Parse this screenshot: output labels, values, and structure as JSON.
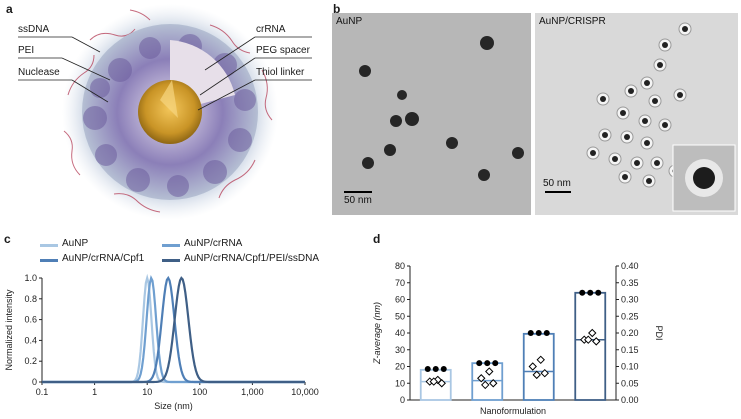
{
  "panels": {
    "a": {
      "letter": "a",
      "labels_left": [
        "ssDNA",
        "PEI",
        "Nuclease"
      ],
      "labels_right": [
        "crRNA",
        "PEG spacer",
        "Thiol linker"
      ]
    },
    "b": {
      "letter": "b",
      "left_label": "AuNP",
      "right_label": "AuNP/CRISPR",
      "left_scalebar": "50 nm",
      "right_scalebar": "50 nm"
    },
    "c": {
      "letter": "c",
      "chart_data": {
        "type": "line",
        "xlabel": "Size (nm)",
        "ylabel": "Normalized intensity",
        "xscale": "log",
        "xlim": [
          0.1,
          10000
        ],
        "ylim": [
          0,
          1.0
        ],
        "x_ticks": [
          "0.1",
          "1",
          "10",
          "100",
          "1,000",
          "10,000"
        ],
        "y_ticks": [
          "0",
          "0.2",
          "0.4",
          "0.6",
          "0.8",
          "1.0"
        ],
        "legend_placement": "top",
        "series": [
          {
            "name": "AuNP",
            "color": "#a9c7e3",
            "peak": 10,
            "width": 0.08
          },
          {
            "name": "AuNP/crRNA",
            "color": "#6f9fd0",
            "peak": 12,
            "width": 0.09
          },
          {
            "name": "AuNP/crRNA/Cpf1",
            "color": "#4f7fb6",
            "peak": 25,
            "width": 0.12
          },
          {
            "name": "AuNP/crRNA/Cpf1/PEI/ssDNA",
            "color": "#3f5f86",
            "peak": 45,
            "width": 0.13
          }
        ]
      }
    },
    "d": {
      "letter": "d",
      "chart_data": {
        "type": "bar",
        "xlabel": "Nanoformulation",
        "ylabel": "Z-average (nm)",
        "y2label": "PDI",
        "ylim": [
          0,
          80
        ],
        "y2lim": [
          0,
          0.4
        ],
        "y_ticks": [
          "0",
          "10",
          "20",
          "30",
          "40",
          "50",
          "60",
          "70",
          "80"
        ],
        "y2_ticks": [
          "0.00",
          "0.05",
          "0.10",
          "0.15",
          "0.20",
          "0.25",
          "0.30",
          "0.35",
          "0.40"
        ],
        "bars": [
          {
            "color": "#a9c7e3",
            "zavg": 18,
            "zavg_points": [
              18.5,
              18.5,
              18.5
            ],
            "pdi_mean": 0.055,
            "pdi_points": [
              0.06,
              0.055,
              0.05,
              0.055
            ]
          },
          {
            "color": "#6f9fd0",
            "zavg": 22,
            "zavg_points": [
              22,
              22,
              22
            ],
            "pdi_mean": 0.058,
            "pdi_points": [
              0.085,
              0.065,
              0.05,
              0.045
            ]
          },
          {
            "color": "#4f7fb6",
            "zavg": 39.5,
            "zavg_points": [
              40,
              40,
              40
            ],
            "pdi_mean": 0.085,
            "pdi_points": [
              0.12,
              0.1,
              0.08,
              0.075
            ]
          },
          {
            "color": "#3f5f86",
            "zavg": 64,
            "zavg_points": [
              64,
              64,
              64
            ],
            "pdi_mean": 0.18,
            "pdi_points": [
              0.2,
              0.18,
              0.175,
              0.18
            ]
          }
        ]
      }
    }
  }
}
